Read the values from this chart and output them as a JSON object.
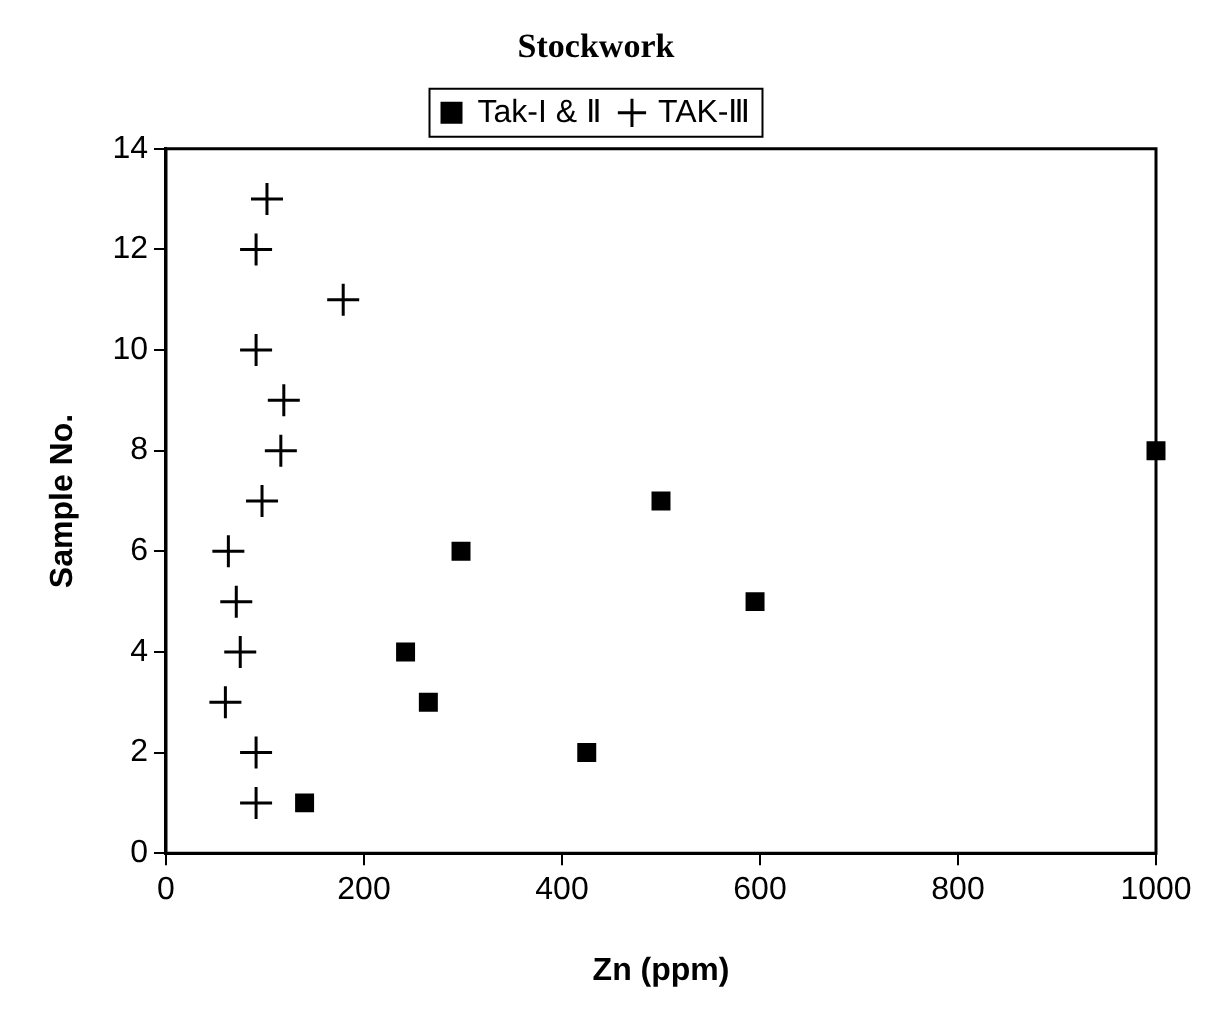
{
  "chart_data": {
    "type": "scatter",
    "title": "Stockwork",
    "xlabel": "Zn (ppm)",
    "ylabel": "Sample No.",
    "xlim": [
      0,
      1000
    ],
    "xticks": [
      0,
      200,
      400,
      600,
      800,
      1000
    ],
    "ylim": [
      0,
      14
    ],
    "yticks": [
      0,
      2,
      4,
      6,
      8,
      10,
      12,
      14
    ],
    "grid": false,
    "legend": "top",
    "series": [
      {
        "name": "Tak-I & Ⅱ",
        "color": "#000000",
        "marker": "square",
        "x": [
          140,
          425,
          265,
          242,
          595,
          298,
          500,
          1000
        ],
        "values": [
          1,
          2,
          3,
          4,
          5,
          6,
          7,
          8
        ]
      },
      {
        "name": "TAK-Ⅲ",
        "color": "#000000",
        "marker": "cross",
        "x": [
          91,
          91,
          60,
          75,
          71,
          63,
          97,
          116,
          119,
          91,
          179,
          91,
          102
        ],
        "values": [
          1,
          2,
          3,
          4,
          5,
          6,
          7,
          8,
          9,
          10,
          11,
          12,
          13
        ]
      }
    ]
  }
}
